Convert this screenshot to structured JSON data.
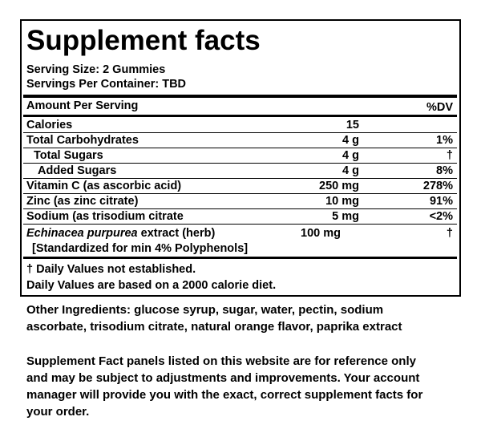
{
  "panel": {
    "title": "Supplement facts",
    "serving_size": "Serving Size: 2 Gummies",
    "servings_per_container": "Servings Per Container: TBD",
    "header": {
      "amount": "Amount Per Serving",
      "dv": "%DV"
    },
    "rows": [
      {
        "name": "Calories",
        "amount": "15",
        "dv": ""
      },
      {
        "name": "Total Carbohydrates",
        "amount": "4 g",
        "dv": "1%"
      },
      {
        "name": "Total Sugars",
        "amount": "4 g",
        "dv": "†"
      },
      {
        "name": "Added Sugars",
        "amount": "4 g",
        "dv": "8%"
      },
      {
        "name": "Vitamin C (as ascorbic acid)",
        "amount": "250 mg",
        "dv": "278%"
      },
      {
        "name": "Zinc (as zinc citrate)",
        "amount": "10 mg",
        "dv": "91%"
      },
      {
        "name": "Sodium (as trisodium citrate",
        "amount": "5 mg",
        "dv": "<2%"
      }
    ],
    "botanical": {
      "name_italic": "Echinacea purpurea",
      "name": "extract (herb)",
      "note": "[Standardized for min 4% Polyphenols]",
      "amount": "100 mg",
      "dv": "†"
    },
    "footnotes": [
      "† Daily Values not established.",
      "Daily Values are based on a 2000 calorie diet."
    ]
  },
  "other_ingredients": [
    "Other Ingredients: glucose syrup, sugar, water, pectin, sodium",
    "ascorbate, trisodium citrate, natural orange flavor, paprika extract"
  ],
  "disclaimer": [
    "Supplement Fact panels listed on this website are for reference only",
    "and may be subject to adjustments and improvements. Your account",
    "manager will provide you with the exact, correct supplement facts for",
    "your order."
  ]
}
